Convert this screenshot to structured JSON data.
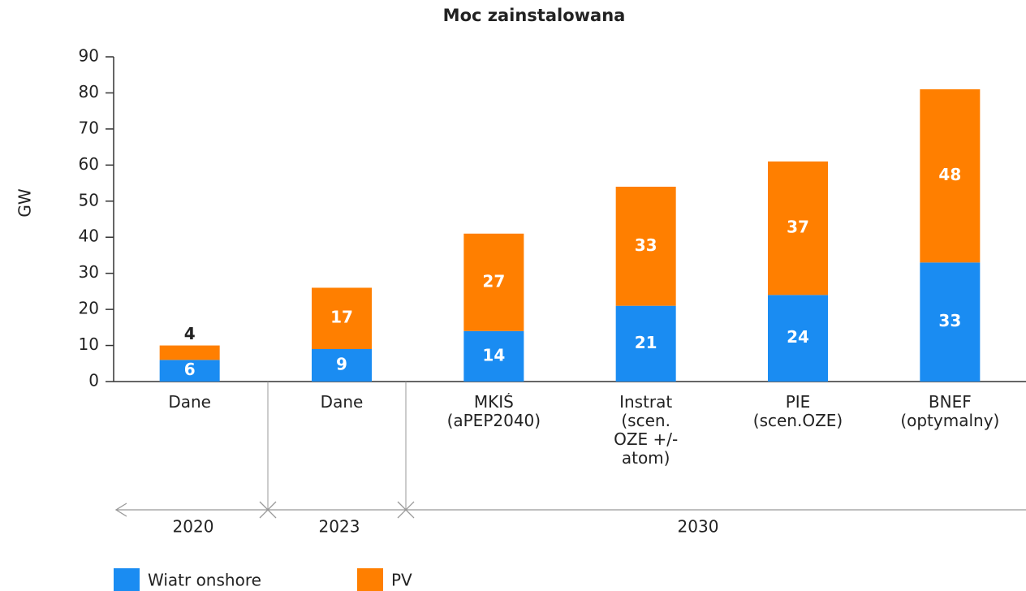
{
  "chart_data": {
    "type": "stacked_bar",
    "title": "Moc zainstalowana",
    "y_label": "GW",
    "categories": [
      "Dane",
      "Dane",
      "MKIŚ\n(aPEP2040)",
      "Instrat\n(scen.\nOZE +/-\natom)",
      "PIE\n(scen.OZE)",
      "BNEF\n(optymalny)"
    ],
    "period_labels": [
      "2020",
      "2023",
      "2030"
    ],
    "series": [
      {
        "name": "Wiatr onshore",
        "color": "#1a8cf2",
        "values": [
          6,
          9,
          14,
          21,
          24,
          33
        ]
      },
      {
        "name": "PV",
        "color": "#ff7f00",
        "values": [
          4,
          17,
          27,
          33,
          37,
          48
        ]
      }
    ],
    "ylim": [
      0,
      90
    ],
    "yticks": [
      0,
      10,
      20,
      30,
      40,
      50,
      60,
      70,
      80,
      90
    ]
  }
}
